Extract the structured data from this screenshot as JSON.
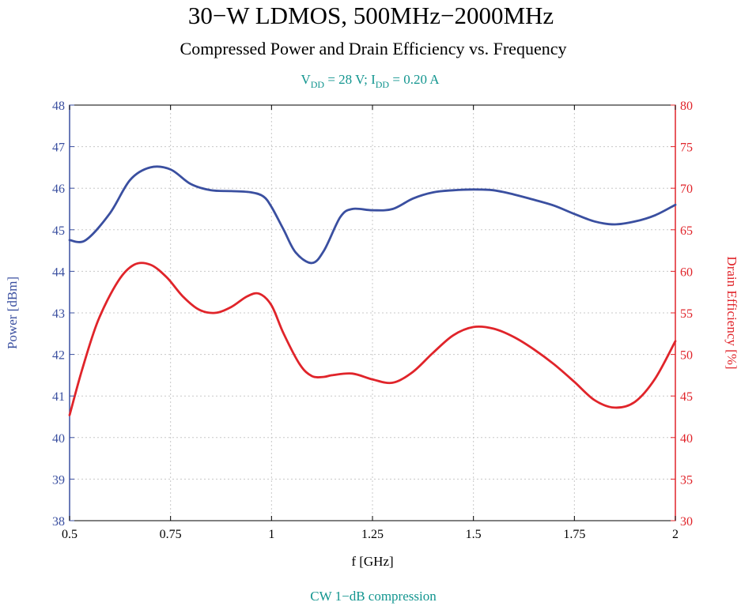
{
  "chart_data": {
    "type": "line",
    "title": "30−W LDMOS, 500MHz−2000MHz",
    "subtitle": "Compressed Power and Drain Efficiency vs. Frequency",
    "conditions": {
      "vdd_label": "V",
      "vdd_sub": "DD",
      "vdd_value": " = 28 V; I",
      "idd_sub": "DD",
      "idd_value": " = 0.20 A"
    },
    "footnote": "CW 1−dB compression",
    "xlabel": "f [GHz]",
    "ylabel_left": "Power [dBm]",
    "ylabel_right": "Drain Efficiency [%]",
    "xlim": [
      0.5,
      2
    ],
    "ylim_left": [
      38,
      48
    ],
    "ylim_right": [
      30,
      80
    ],
    "x_ticks": [
      "0.5",
      "0.75",
      "1",
      "1.25",
      "1.5",
      "1.75",
      "2"
    ],
    "x_tick_values": [
      0.5,
      0.75,
      1,
      1.25,
      1.5,
      1.75,
      2
    ],
    "y_ticks_left": [
      38,
      39,
      40,
      41,
      42,
      43,
      44,
      45,
      46,
      47,
      48
    ],
    "y_ticks_right": [
      30,
      35,
      40,
      45,
      50,
      55,
      60,
      65,
      70,
      75,
      80
    ],
    "grid": true,
    "series": [
      {
        "name": "Power [dBm]",
        "axis": "left",
        "color": "#3a4fa0",
        "x": [
          0.5,
          0.54,
          0.6,
          0.65,
          0.7,
          0.75,
          0.8,
          0.85,
          0.9,
          0.95,
          0.98,
          1.0,
          1.03,
          1.06,
          1.1,
          1.13,
          1.17,
          1.2,
          1.25,
          1.3,
          1.35,
          1.4,
          1.45,
          1.5,
          1.55,
          1.6,
          1.65,
          1.7,
          1.75,
          1.8,
          1.85,
          1.9,
          1.95,
          2.0
        ],
        "y": [
          44.75,
          44.75,
          45.4,
          46.2,
          46.5,
          46.45,
          46.1,
          45.95,
          45.93,
          45.9,
          45.8,
          45.55,
          45.0,
          44.45,
          44.2,
          44.5,
          45.3,
          45.5,
          45.47,
          45.5,
          45.75,
          45.9,
          45.95,
          45.97,
          45.95,
          45.85,
          45.72,
          45.58,
          45.38,
          45.2,
          45.13,
          45.2,
          45.35,
          45.6
        ]
      },
      {
        "name": "Drain Efficiency [%]",
        "axis": "right",
        "color": "#e0242a",
        "x": [
          0.5,
          0.53,
          0.57,
          0.62,
          0.66,
          0.7,
          0.74,
          0.78,
          0.82,
          0.86,
          0.9,
          0.94,
          0.97,
          1.0,
          1.03,
          1.07,
          1.1,
          1.13,
          1.15,
          1.2,
          1.25,
          1.3,
          1.35,
          1.4,
          1.45,
          1.5,
          1.55,
          1.6,
          1.65,
          1.7,
          1.75,
          1.8,
          1.85,
          1.9,
          1.95,
          2.0
        ],
        "y": [
          42.7,
          48.0,
          54.0,
          58.8,
          60.8,
          60.8,
          59.3,
          57.0,
          55.4,
          55.0,
          55.7,
          57.0,
          57.3,
          55.9,
          52.5,
          48.8,
          47.4,
          47.3,
          47.5,
          47.7,
          47.0,
          46.6,
          47.9,
          50.2,
          52.3,
          53.3,
          53.1,
          52.1,
          50.6,
          48.8,
          46.7,
          44.5,
          43.6,
          44.3,
          47.1,
          51.6
        ]
      }
    ]
  }
}
